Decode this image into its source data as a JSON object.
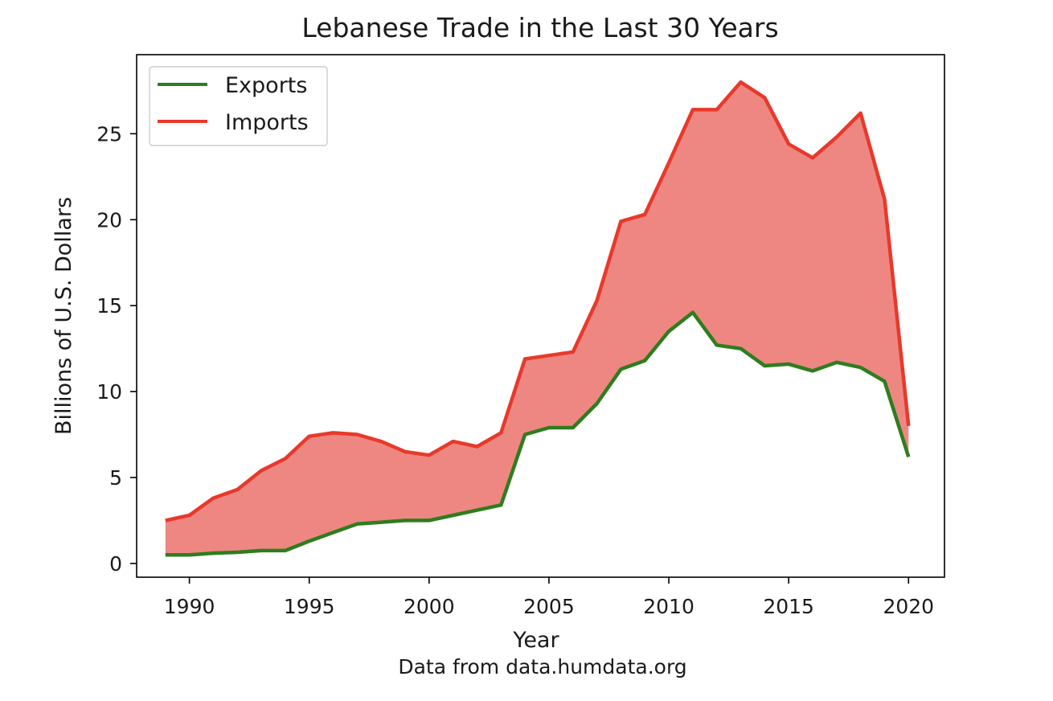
{
  "chart_data": {
    "type": "area",
    "title": "Lebanese Trade in the Last 30 Years",
    "xlabel": "Year",
    "ylabel": "Billions of U.S. Dollars",
    "caption": "Data from data.humdata.org",
    "xlim": [
      1987.8,
      2021.5
    ],
    "ylim": [
      -0.8,
      29.6
    ],
    "xticks": [
      1990,
      1995,
      2000,
      2005,
      2010,
      2015,
      2020
    ],
    "yticks": [
      0,
      5,
      10,
      15,
      20,
      25
    ],
    "legend_position": "top-left",
    "x": [
      1989,
      1990,
      1991,
      1992,
      1993,
      1994,
      1995,
      1996,
      1997,
      1998,
      1999,
      2000,
      2001,
      2002,
      2003,
      2004,
      2005,
      2006,
      2007,
      2008,
      2009,
      2010,
      2011,
      2012,
      2013,
      2014,
      2015,
      2016,
      2017,
      2018,
      2019,
      2020
    ],
    "series": [
      {
        "name": "Exports",
        "color": "#2e7d1e",
        "values": [
          0.5,
          0.5,
          0.6,
          0.65,
          0.75,
          0.75,
          1.3,
          1.8,
          2.3,
          2.4,
          2.5,
          2.5,
          2.8,
          3.1,
          3.4,
          7.5,
          7.9,
          7.9,
          9.3,
          11.3,
          11.8,
          13.5,
          14.6,
          12.7,
          12.5,
          11.5,
          11.6,
          11.2,
          11.7,
          11.4,
          10.6,
          6.2
        ]
      },
      {
        "name": "Imports",
        "color": "#e8392b",
        "values": [
          2.5,
          2.8,
          3.8,
          4.3,
          5.4,
          6.1,
          7.4,
          7.6,
          7.5,
          7.1,
          6.5,
          6.3,
          7.1,
          6.8,
          7.6,
          11.9,
          12.1,
          12.3,
          15.3,
          19.9,
          20.3,
          23.3,
          26.4,
          26.4,
          28.0,
          27.1,
          24.4,
          23.6,
          24.8,
          26.2,
          21.2,
          8.0
        ]
      }
    ],
    "fill_between_color": "#ee8782"
  }
}
